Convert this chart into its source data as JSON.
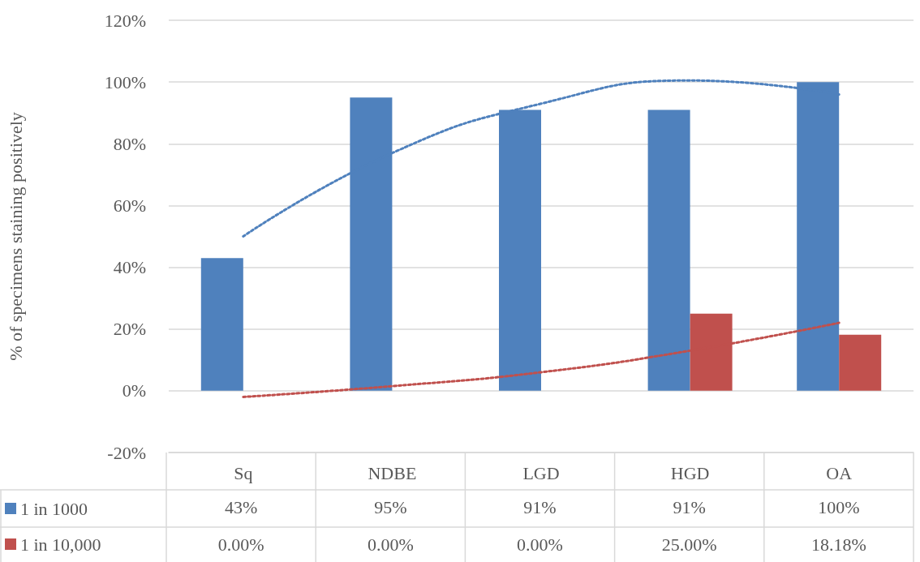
{
  "chart_data": {
    "type": "bar",
    "ylabel": "% of specimens staining positively",
    "categories": [
      "Sq",
      "NDBE",
      "LGD",
      "HGD",
      "OA"
    ],
    "series": [
      {
        "name": "1 in 1000",
        "color": "#4f81bd",
        "values": [
          43,
          95,
          91,
          91,
          100
        ],
        "value_labels": [
          "43%",
          "95%",
          "91%",
          "91%",
          "100%"
        ]
      },
      {
        "name": "1 in 10,000",
        "color": "#c0504d",
        "values": [
          0,
          0,
          0,
          25,
          18.18
        ],
        "value_labels": [
          "0.00%",
          "0.00%",
          "0.00%",
          "25.00%",
          "18.18%"
        ]
      },
      {
        "type": "line",
        "color": "#4f81bd",
        "line_style": "dotted",
        "values": [
          50,
          77,
          93,
          100.5,
          96
        ]
      },
      {
        "type": "line",
        "color": "#c0504d",
        "line_style": "dotted",
        "values": [
          -2,
          1.5,
          6,
          13,
          22
        ]
      }
    ],
    "ylim": [
      -20,
      120
    ],
    "yticks": [
      {
        "value": -20,
        "label": "-20%"
      },
      {
        "value": 0,
        "label": "0%"
      },
      {
        "value": 20,
        "label": "20%"
      },
      {
        "value": 40,
        "label": "40%"
      },
      {
        "value": 60,
        "label": "60%"
      },
      {
        "value": 80,
        "label": "80%"
      },
      {
        "value": 100,
        "label": "100%"
      },
      {
        "value": 120,
        "label": "120%"
      }
    ],
    "grid": "y",
    "legend": "bottom left"
  }
}
